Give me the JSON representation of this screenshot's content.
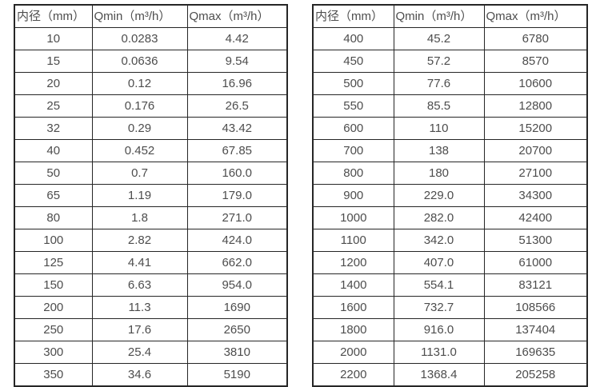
{
  "page": {
    "background_color": "#ffffff",
    "text_color": "#4d4d4d",
    "border_color": "#262626"
  },
  "left_table": {
    "headers": [
      "内径（mm）",
      "Qmin（m³/h）",
      "Qmax（m³/h）"
    ],
    "rows": [
      [
        "10",
        "0.0283",
        "4.42"
      ],
      [
        "15",
        "0.0636",
        "9.54"
      ],
      [
        "20",
        "0.12",
        "16.96"
      ],
      [
        "25",
        "0.176",
        "26.5"
      ],
      [
        "32",
        "0.29",
        "43.42"
      ],
      [
        "40",
        "0.452",
        "67.85"
      ],
      [
        "50",
        "0.7",
        "160.0"
      ],
      [
        "65",
        "1.19",
        "179.0"
      ],
      [
        "80",
        "1.8",
        "271.0"
      ],
      [
        "100",
        "2.82",
        "424.0"
      ],
      [
        "125",
        "4.41",
        "662.0"
      ],
      [
        "150",
        "6.63",
        "954.0"
      ],
      [
        "200",
        "11.3",
        "1690"
      ],
      [
        "250",
        "17.6",
        "2650"
      ],
      [
        "300",
        "25.4",
        "3810"
      ],
      [
        "350",
        "34.6",
        "5190"
      ]
    ]
  },
  "right_table": {
    "headers": [
      "内径（mm）",
      "Qmin（m³/h）",
      "Qmax（m³/h）"
    ],
    "rows": [
      [
        "400",
        "45.2",
        "6780"
      ],
      [
        "450",
        "57.2",
        "8570"
      ],
      [
        "500",
        "77.6",
        "10600"
      ],
      [
        "550",
        "85.5",
        "12800"
      ],
      [
        "600",
        "110",
        "15200"
      ],
      [
        "700",
        "138",
        "20700"
      ],
      [
        "800",
        "180",
        "27100"
      ],
      [
        "900",
        "229.0",
        "34300"
      ],
      [
        "1000",
        "282.0",
        "42400"
      ],
      [
        "1100",
        "342.0",
        "51300"
      ],
      [
        "1200",
        "407.0",
        "61000"
      ],
      [
        "1400",
        "554.1",
        "83121"
      ],
      [
        "1600",
        "732.7",
        "108566"
      ],
      [
        "1800",
        "916.0",
        "137404"
      ],
      [
        "2000",
        "1131.0",
        "169635"
      ],
      [
        "2200",
        "1368.4",
        "205258"
      ]
    ]
  }
}
